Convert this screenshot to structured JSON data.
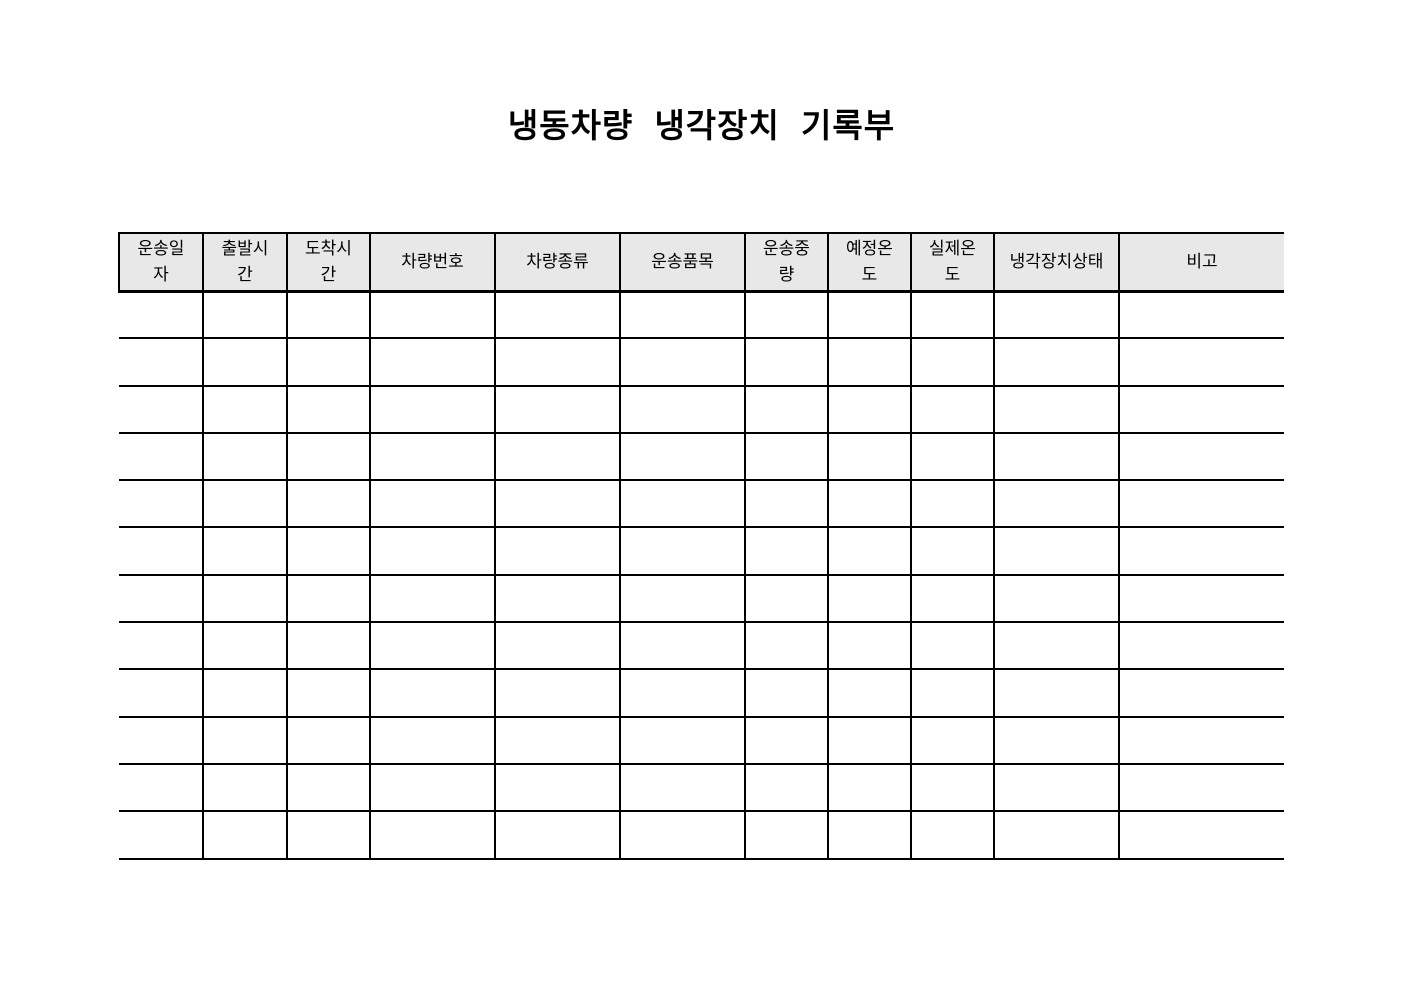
{
  "document": {
    "title": "냉동차량 냉각장치 기록부"
  },
  "table": {
    "columns": [
      "운송일\n자",
      "출발시\n간",
      "도착시\n간",
      "차량번호",
      "차량종류",
      "운송품목",
      "운송중\n량",
      "예정온\n도",
      "실제온\n도",
      "냉각장치상태",
      "비고"
    ],
    "row_count": 12,
    "rows": [
      [
        "",
        "",
        "",
        "",
        "",
        "",
        "",
        "",
        "",
        "",
        ""
      ],
      [
        "",
        "",
        "",
        "",
        "",
        "",
        "",
        "",
        "",
        "",
        ""
      ],
      [
        "",
        "",
        "",
        "",
        "",
        "",
        "",
        "",
        "",
        "",
        ""
      ],
      [
        "",
        "",
        "",
        "",
        "",
        "",
        "",
        "",
        "",
        "",
        ""
      ],
      [
        "",
        "",
        "",
        "",
        "",
        "",
        "",
        "",
        "",
        "",
        ""
      ],
      [
        "",
        "",
        "",
        "",
        "",
        "",
        "",
        "",
        "",
        "",
        ""
      ],
      [
        "",
        "",
        "",
        "",
        "",
        "",
        "",
        "",
        "",
        "",
        ""
      ],
      [
        "",
        "",
        "",
        "",
        "",
        "",
        "",
        "",
        "",
        "",
        ""
      ],
      [
        "",
        "",
        "",
        "",
        "",
        "",
        "",
        "",
        "",
        "",
        ""
      ],
      [
        "",
        "",
        "",
        "",
        "",
        "",
        "",
        "",
        "",
        "",
        ""
      ],
      [
        "",
        "",
        "",
        "",
        "",
        "",
        "",
        "",
        "",
        "",
        ""
      ],
      [
        "",
        "",
        "",
        "",
        "",
        "",
        "",
        "",
        "",
        "",
        ""
      ]
    ]
  },
  "colors": {
    "page_bg": "#ffffff",
    "header_bg": "#e8e8e8",
    "border": "#000000",
    "text": "#000000"
  }
}
